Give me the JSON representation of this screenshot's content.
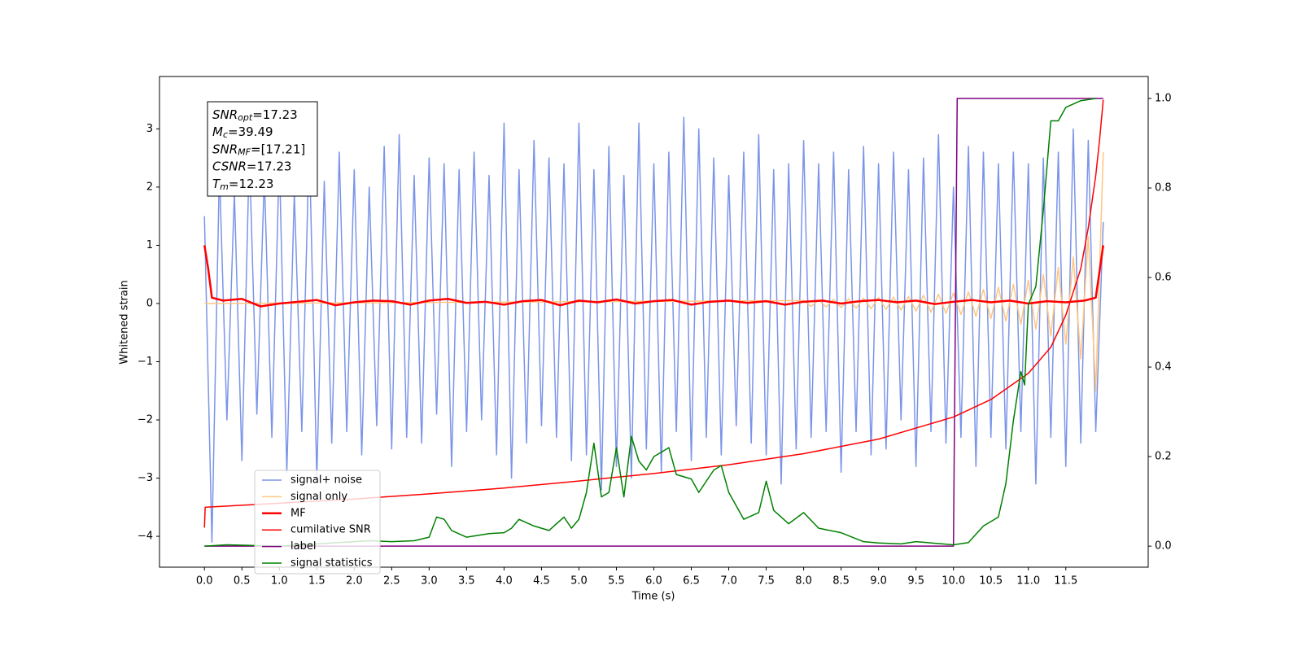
{
  "chart_data": {
    "type": "line",
    "xlabel": "Time (s)",
    "ylabel": "Whitened strain",
    "xlim": [
      -0.6,
      12.6
    ],
    "ylim": [
      -4.53,
      3.9
    ],
    "y2lim": [
      -0.047,
      1.049
    ],
    "xticks": [
      {
        "value": 0,
        "label": "0.0"
      },
      {
        "value": 0.5,
        "label": "0.5"
      },
      {
        "value": 1,
        "label": "1.0"
      },
      {
        "value": 1.5,
        "label": "1.5"
      },
      {
        "value": 2,
        "label": "2.0"
      },
      {
        "value": 2.5,
        "label": "2.5"
      },
      {
        "value": 3,
        "label": "3.0"
      },
      {
        "value": 3.5,
        "label": "3.5"
      },
      {
        "value": 4,
        "label": "4.0"
      },
      {
        "value": 4.5,
        "label": "4.5"
      },
      {
        "value": 5,
        "label": "5.0"
      },
      {
        "value": 5.5,
        "label": "5.5"
      },
      {
        "value": 6,
        "label": "6.0"
      },
      {
        "value": 6.5,
        "label": "6.5"
      },
      {
        "value": 7,
        "label": "7.0"
      },
      {
        "value": 7.5,
        "label": "7.5"
      },
      {
        "value": 8,
        "label": "8.0"
      },
      {
        "value": 8.5,
        "label": "8.5"
      },
      {
        "value": 9,
        "label": "9.0"
      },
      {
        "value": 9.5,
        "label": "9.5"
      },
      {
        "value": 10,
        "label": "10.0"
      },
      {
        "value": 10.5,
        "label": "10.5"
      },
      {
        "value": 11,
        "label": "11.0"
      },
      {
        "value": 11.5,
        "label": "11.5"
      }
    ],
    "yticks": [
      {
        "value": -4,
        "label": "−4"
      },
      {
        "value": -3,
        "label": "−3"
      },
      {
        "value": -2,
        "label": "−2"
      },
      {
        "value": -1,
        "label": "−1"
      },
      0,
      1,
      2,
      3
    ],
    "y2ticks": [
      {
        "value": 0,
        "label": "0.0"
      },
      {
        "value": 0.2,
        "label": "0.2"
      },
      {
        "value": 0.4,
        "label": "0.4"
      },
      {
        "value": 0.6,
        "label": "0.6"
      },
      {
        "value": 0.8,
        "label": "0.8"
      },
      {
        "value": 1,
        "label": "1.0"
      }
    ],
    "annotations": [
      {
        "main": "SNR",
        "sub": "opt",
        "rest": "=17.23"
      },
      {
        "main": "M",
        "sub": "c",
        "rest": "=39.49"
      },
      {
        "main": "SNR",
        "sub": "MF",
        "rest": "=[17.21]"
      },
      {
        "main": "CSNR",
        "rest": "=17.23"
      },
      {
        "main": "T",
        "sub": "m",
        "rest": "=12.23"
      }
    ],
    "legend": "lower left",
    "series": [
      {
        "name": "signal+ noise",
        "color": "#7b94e8",
        "width": 1.5,
        "x": [
          0,
          0.1,
          0.2,
          0.3,
          0.4,
          0.5,
          0.6,
          0.7,
          0.8,
          0.9,
          1,
          1.1,
          1.2,
          1.3,
          1.4,
          1.5,
          1.6,
          1.7,
          1.8,
          1.9,
          2,
          2.1,
          2.2,
          2.3,
          2.4,
          2.5,
          2.6,
          2.7,
          2.8,
          2.9,
          3,
          3.1,
          3.2,
          3.3,
          3.4,
          3.5,
          3.6,
          3.7,
          3.8,
          3.9,
          4,
          4.1,
          4.2,
          4.3,
          4.4,
          4.5,
          4.6,
          4.7,
          4.8,
          4.9,
          5,
          5.1,
          5.2,
          5.3,
          5.4,
          5.5,
          5.6,
          5.7,
          5.8,
          5.9,
          6,
          6.1,
          6.2,
          6.3,
          6.4,
          6.5,
          6.6,
          6.7,
          6.8,
          6.9,
          7,
          7.1,
          7.2,
          7.3,
          7.4,
          7.5,
          7.6,
          7.7,
          7.8,
          7.9,
          8,
          8.1,
          8.2,
          8.3,
          8.4,
          8.5,
          8.6,
          8.7,
          8.8,
          8.9,
          9,
          9.1,
          9.2,
          9.3,
          9.4,
          9.5,
          9.6,
          9.7,
          9.8,
          9.9,
          10,
          10.1,
          10.2,
          10.3,
          10.4,
          10.5,
          10.6,
          10.7,
          10.8,
          10.9,
          11,
          11.1,
          11.2,
          11.3,
          11.4,
          11.5,
          11.6,
          11.7,
          11.8,
          11.9,
          12
        ],
        "values": [
          1.5,
          -4.1,
          2.3,
          -2.0,
          1.9,
          -2.7,
          2.6,
          -1.9,
          2.2,
          -2.3,
          2.5,
          -2.9,
          1.9,
          -2.2,
          2.8,
          -3.0,
          2.1,
          -2.4,
          2.6,
          -2.2,
          2.3,
          -2.6,
          2.0,
          -2.1,
          2.7,
          -2.5,
          2.9,
          -2.3,
          2.2,
          -2.4,
          2.5,
          -1.9,
          2.4,
          -2.8,
          2.3,
          -2.2,
          2.6,
          -2.0,
          2.2,
          -2.6,
          3.1,
          -3.0,
          2.3,
          -2.4,
          2.8,
          -2.1,
          2.5,
          -2.3,
          2.4,
          -2.7,
          3.1,
          -2.6,
          2.3,
          -3.2,
          2.7,
          -2.8,
          2.2,
          -3.0,
          3.1,
          -2.5,
          2.4,
          -2.9,
          2.6,
          -2.2,
          3.2,
          -2.7,
          3.0,
          -2.3,
          2.5,
          -2.6,
          2.2,
          -2.1,
          2.6,
          -2.4,
          2.9,
          -2.6,
          2.3,
          -3.1,
          2.4,
          -2.5,
          2.8,
          -2.3,
          2.4,
          -2.2,
          2.6,
          -2.9,
          2.3,
          -2.2,
          2.7,
          -2.6,
          2.4,
          -2.5,
          2.6,
          -2.0,
          2.3,
          -2.8,
          2.5,
          -2.2,
          2.9,
          -2.4,
          2.0,
          -2.3,
          2.7,
          -2.8,
          2.6,
          -2.3,
          2.4,
          -2.5,
          2.6,
          -2.2,
          2.4,
          -3.1,
          2.5,
          -2.3,
          2.6,
          -2.8,
          3.0,
          -2.4,
          2.8,
          -2.2,
          1.4
        ]
      },
      {
        "name": "signal only",
        "color": "#ffc680",
        "width": 1.5,
        "x": [
          0,
          8,
          8.1,
          8.2,
          8.3,
          8.4,
          8.5,
          8.6,
          8.7,
          8.8,
          8.9,
          9,
          9.1,
          9.2,
          9.3,
          9.4,
          9.5,
          9.6,
          9.7,
          9.8,
          9.9,
          10,
          10.1,
          10.2,
          10.3,
          10.4,
          10.5,
          10.6,
          10.7,
          10.8,
          10.9,
          11,
          11.1,
          11.2,
          11.3,
          11.4,
          11.5,
          11.6,
          11.7,
          11.8,
          11.9,
          12
        ],
        "values": [
          0,
          0.05,
          -0.05,
          0.06,
          -0.06,
          0.07,
          -0.07,
          0.08,
          -0.08,
          0.09,
          -0.09,
          0.1,
          -0.1,
          0.11,
          -0.11,
          0.12,
          -0.13,
          0.14,
          -0.15,
          0.16,
          -0.17,
          0.18,
          -0.19,
          0.2,
          -0.22,
          0.24,
          -0.26,
          0.28,
          -0.3,
          0.33,
          -0.36,
          0.4,
          -0.44,
          0.5,
          -0.56,
          0.62,
          -0.7,
          0.8,
          -0.95,
          1.15,
          -1.5,
          2.6
        ]
      },
      {
        "name": "MF",
        "color": "#ff0000",
        "width": 2.5,
        "x": [
          0,
          0.05,
          0.1,
          0.25,
          0.5,
          0.75,
          1,
          1.25,
          1.5,
          1.75,
          2,
          2.25,
          2.5,
          2.75,
          3,
          3.25,
          3.5,
          3.75,
          4,
          4.25,
          4.5,
          4.75,
          5,
          5.25,
          5.5,
          5.75,
          6,
          6.25,
          6.5,
          6.75,
          7,
          7.25,
          7.5,
          7.75,
          8,
          8.25,
          8.5,
          8.75,
          9,
          9.25,
          9.5,
          9.75,
          10,
          10.25,
          10.5,
          10.75,
          11,
          11.25,
          11.5,
          11.75,
          11.9,
          12
        ],
        "values": [
          1.0,
          0.6,
          0.1,
          0.05,
          0.08,
          -0.05,
          0.0,
          0.03,
          0.06,
          -0.03,
          0.02,
          0.05,
          0.04,
          -0.02,
          0.05,
          0.08,
          0.01,
          0.03,
          -0.02,
          0.04,
          0.06,
          -0.03,
          0.05,
          0.02,
          0.07,
          0.0,
          0.04,
          0.06,
          -0.02,
          0.03,
          0.05,
          0.01,
          0.04,
          -0.02,
          0.03,
          0.05,
          0.0,
          0.04,
          0.06,
          0.02,
          0.05,
          -0.01,
          0.03,
          0.06,
          0.02,
          0.05,
          0.0,
          0.04,
          0.02,
          0.05,
          0.1,
          1.0
        ]
      },
      {
        "name": "cumilative SNR",
        "color": "#ff0000",
        "width": 1.5,
        "x": [
          0,
          0.01,
          1,
          2,
          3,
          4,
          5,
          6,
          7,
          8,
          9,
          10,
          10.5,
          11,
          11.3,
          11.5,
          11.7,
          11.8,
          11.9,
          11.95,
          12
        ],
        "values": [
          -3.85,
          -3.5,
          -3.43,
          -3.36,
          -3.27,
          -3.17,
          -3.05,
          -2.92,
          -2.77,
          -2.58,
          -2.33,
          -1.95,
          -1.65,
          -1.2,
          -0.75,
          -0.2,
          0.6,
          1.3,
          2.2,
          2.8,
          3.5
        ]
      },
      {
        "name": "label",
        "color": "#800080",
        "width": 1.5,
        "axis": "y2",
        "x": [
          0,
          10,
          10.05,
          12
        ],
        "values": [
          0,
          0,
          1,
          1
        ]
      },
      {
        "name": "signal statistics",
        "color": "#008000",
        "width": 1.5,
        "axis": "y2",
        "x": [
          0,
          0.3,
          1,
          1.5,
          2,
          2.2,
          2.5,
          2.8,
          3,
          3.1,
          3.2,
          3.3,
          3.5,
          3.8,
          4,
          4.1,
          4.2,
          4.4,
          4.6,
          4.8,
          4.9,
          5,
          5.1,
          5.2,
          5.3,
          5.4,
          5.5,
          5.6,
          5.7,
          5.8,
          5.9,
          6,
          6.2,
          6.3,
          6.5,
          6.6,
          6.8,
          6.9,
          7,
          7.2,
          7.4,
          7.5,
          7.6,
          7.8,
          8,
          8.2,
          8.5,
          8.8,
          9,
          9.3,
          9.5,
          10,
          10.2,
          10.4,
          10.6,
          10.7,
          10.8,
          10.9,
          10.95,
          11,
          11.1,
          11.2,
          11.3,
          11.4,
          11.5,
          11.7,
          11.9
        ],
        "values": [
          0,
          0.003,
          0,
          0.005,
          0.01,
          0.012,
          0.01,
          0.012,
          0.02,
          0.065,
          0.06,
          0.035,
          0.02,
          0.028,
          0.03,
          0.04,
          0.06,
          0.045,
          0.035,
          0.065,
          0.04,
          0.06,
          0.12,
          0.23,
          0.11,
          0.12,
          0.22,
          0.11,
          0.245,
          0.19,
          0.17,
          0.2,
          0.22,
          0.16,
          0.15,
          0.12,
          0.17,
          0.18,
          0.12,
          0.06,
          0.075,
          0.145,
          0.08,
          0.05,
          0.075,
          0.04,
          0.03,
          0.01,
          0.007,
          0.005,
          0.01,
          0.003,
          0.008,
          0.045,
          0.065,
          0.14,
          0.28,
          0.39,
          0.36,
          0.54,
          0.58,
          0.75,
          0.95,
          0.95,
          0.98,
          0.995,
          1
        ]
      }
    ]
  }
}
